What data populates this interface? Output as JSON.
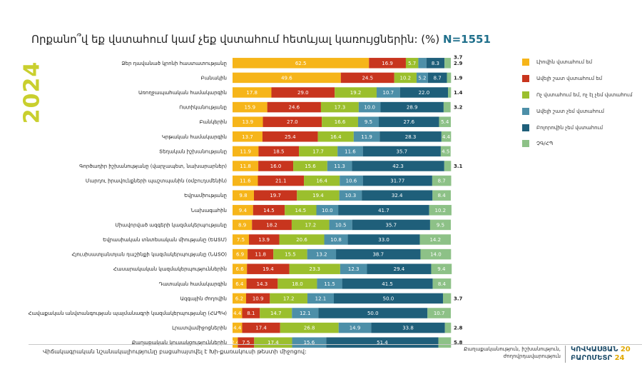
{
  "title": {
    "question": "Որքանո՞վ եք վստահում կամ չեք վստահում հետևյալ կառույցներին: (%)",
    "sample": "N=1551"
  },
  "year_label": "2024",
  "legend": [
    {
      "label": "Լիովին վստահում եմ",
      "color": "#f6b51a"
    },
    {
      "label": "Ավելի շատ վստահում եմ",
      "color": "#c8351e"
    },
    {
      "label": "Ոչ վստահում եմ, ոչ էլ չեմ վստահում",
      "color": "#9bbf2d"
    },
    {
      "label": "Ավելի շատ չեմ վստահում",
      "color": "#4d8fa8"
    },
    {
      "label": "Բոլորովին չեմ վստահում",
      "color": "#1f5f7a"
    },
    {
      "label": "ՉԳ/ՀՊ",
      "color": "#8dc187"
    }
  ],
  "chart_data": {
    "type": "bar",
    "orientation": "horizontal-stacked-100",
    "xlim": [
      0,
      100
    ],
    "categories": [
      "Ձեր դավանած կրոնի հաստատությանը",
      "Բանակին",
      "Առողջապահական համակարգին",
      "Ոստիկանությանը",
      "Բանկերին",
      "Կրթական համակարգին",
      "Տեղական իշխանությանը",
      "Գործադիր իշխանությանը (վարչապետ, նախարարներ)",
      "Մարդու իրավունքների պաշտպանին (օմբուդսմենին)",
      "Եվրամիությանը",
      "Նախագահին",
      "Միավորված ազգերի կազմակերպությանը",
      "Եվրասիական տնտեսական միությանը (ԵԱՏՄ)",
      "Հյուսիսատլանտյան դաշինքի կազմակերպությանը (ՆԱՏՕ)",
      "Հասարակական կազմակերպություններին",
      "Դատական համակարգին",
      "Ազգային ժողովին",
      "Հավաքական անվտանգության պայմանագրի կազմակերպությանը (ՀԱՊԿ)",
      "Լրատվամիջոցներին",
      "Քաղաքական կուսակցություններին"
    ],
    "series": [
      {
        "name": "Լիովին վստահում եմ",
        "values": [
          62.5,
          49.6,
          17.8,
          15.9,
          13.9,
          13.7,
          11.9,
          11.8,
          11.6,
          9.8,
          9.4,
          8.9,
          7.5,
          6.9,
          6.6,
          6.4,
          6.2,
          4.4,
          4.4,
          2.4
        ]
      },
      {
        "name": "Ավելի շատ վստահում եմ",
        "values": [
          16.9,
          24.5,
          29.0,
          24.6,
          27.0,
          25.4,
          18.5,
          16.0,
          21.1,
          19.7,
          14.5,
          18.2,
          13.9,
          11.8,
          19.4,
          14.3,
          10.9,
          8.1,
          17.4,
          7.5
        ]
      },
      {
        "name": "Ոչ վստահում եմ, ոչ էլ չեմ վստահում",
        "values": [
          5.7,
          10.2,
          19.2,
          17.3,
          16.6,
          16.4,
          17.7,
          15.6,
          16.4,
          19.4,
          14.5,
          17.2,
          20.6,
          15.5,
          23.3,
          18.0,
          17.2,
          14.7,
          26.8,
          17.4
        ]
      },
      {
        "name": "Ավելի շատ չեմ վստահում",
        "values": [
          3.7,
          5.2,
          10.7,
          10.0,
          9.5,
          11.9,
          11.6,
          11.3,
          10.6,
          10.3,
          10.0,
          10.5,
          10.8,
          13.2,
          12.3,
          11.5,
          12.1,
          12.1,
          14.9,
          15.6
        ]
      },
      {
        "name": "Բոլորովին չեմ վստահում",
        "values": [
          8.3,
          8.7,
          22.0,
          28.9,
          27.6,
          28.3,
          35.7,
          42.3,
          31.77,
          32.4,
          41.7,
          35.7,
          33.0,
          38.7,
          29.4,
          41.5,
          50.0,
          50.0,
          33.8,
          51.4
        ]
      },
      {
        "name": "ՉԳ/ՀՊ",
        "values": [
          2.9,
          1.9,
          1.4,
          3.2,
          5.4,
          4.4,
          4.5,
          3.1,
          8.7,
          8.4,
          10.2,
          9.5,
          14.2,
          14.0,
          9.4,
          8.4,
          3.7,
          10.7,
          2.8,
          5.8
        ]
      }
    ],
    "data_labels": [
      [
        "62.5",
        "16.9",
        "5.7",
        "3.7",
        "8.3",
        "2.9"
      ],
      [
        "49.6",
        "24.5",
        "10.2",
        "5.2",
        "8.7",
        "1.9"
      ],
      [
        "17.8",
        "29.0",
        "19.2",
        "10.7",
        "22.0",
        "1.4"
      ],
      [
        "15.9",
        "24.6",
        "17.3",
        "10.0",
        "28.9",
        "3.2"
      ],
      [
        "13.9",
        "27.0",
        "16.6",
        "9.5",
        "27.6",
        "5.4"
      ],
      [
        "13.7",
        "25.4",
        "16.4",
        "11.9",
        "28.3",
        "4.4"
      ],
      [
        "11.9",
        "18.5",
        "17.7",
        "11.6",
        "35.7",
        "4.5"
      ],
      [
        "11.8",
        "16.0",
        "15.6",
        "11.3",
        "42.3",
        "3.1"
      ],
      [
        "11.6",
        "21.1",
        "16.4",
        "10.6",
        "31.77",
        "8.7"
      ],
      [
        "9.8",
        "19.7",
        "19.4",
        "10.3",
        "32.4",
        "8.4"
      ],
      [
        "9.4",
        "14.5",
        "14.5",
        "10.0",
        "41.7",
        "10.2"
      ],
      [
        "8.9",
        "18.2",
        "17.2",
        "10.5",
        "35.7",
        "9.5"
      ],
      [
        "7.5",
        "13.9",
        "20.6",
        "10.8",
        "33.0",
        "14.2"
      ],
      [
        "6.9",
        "11.8",
        "15.5",
        "13.2",
        "38.7",
        "14.0"
      ],
      [
        "6.6",
        "19.4",
        "23.3",
        "12.3",
        "29.4",
        "9.4"
      ],
      [
        "6.4",
        "14.3",
        "18.0",
        "11.5",
        "41.5",
        "8.4"
      ],
      [
        "6.2",
        "10.9",
        "17.2",
        "12.1",
        "50.0",
        "3.7"
      ],
      [
        "4.4",
        "8.1",
        "14.7",
        "12.1",
        "50.0",
        "10.7"
      ],
      [
        "4.4",
        "17.4",
        "26.8",
        "14.9",
        "33.8",
        "2.8"
      ],
      [
        "2.4",
        "7.5",
        "17.4",
        "15.6",
        "51.4",
        "5.8"
      ]
    ],
    "outside_label_rows": [
      0,
      1,
      2,
      3,
      7,
      16,
      18,
      19
    ]
  },
  "footnote": "Վիճակագրական նշանակալիությունը բացահայտվել է Խի-քառակուսի թեստի միջոցով:",
  "footer": {
    "line1": "Քաղաքականություն, իշխանություն,",
    "line2": "ժողովրդավարություն",
    "logo_line1": "ԿՈՎԿԱՍՅԱՆ",
    "logo_year_a": "20",
    "logo_line2": "ԲԱՐՈՄԵՏՐ",
    "logo_year_b": "24"
  }
}
